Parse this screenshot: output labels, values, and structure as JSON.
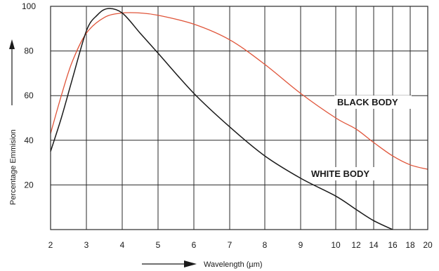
{
  "chart_data": {
    "type": "line",
    "xlabel": "Wavelength (µm)",
    "ylabel": "Percentage Emmision",
    "x_ticks": [
      2,
      3,
      4,
      5,
      6,
      7,
      8,
      9,
      10,
      12,
      14,
      16,
      18,
      20
    ],
    "y_ticks": [
      20,
      40,
      60,
      80,
      100
    ],
    "ylim": [
      0,
      100
    ],
    "xlim": [
      2,
      20
    ],
    "grid": true,
    "series": [
      {
        "name": "BLACK BODY",
        "color": "#e0553a",
        "x": [
          2,
          2.3,
          2.6,
          3,
          3.5,
          4,
          4.5,
          5,
          6,
          7,
          8,
          9,
          10,
          12,
          14,
          16,
          18,
          20
        ],
        "y": [
          43,
          60,
          75,
          88,
          95,
          97,
          97,
          96,
          92,
          85,
          74,
          61,
          50,
          45,
          39,
          33,
          29,
          27
        ]
      },
      {
        "name": "WHITE BODY",
        "color": "#1a1a1a",
        "x": [
          2,
          2.3,
          2.6,
          3,
          3.3,
          3.6,
          4,
          4.5,
          5,
          6,
          7,
          8,
          9,
          10,
          12,
          14,
          16
        ],
        "y": [
          35,
          50,
          67,
          89,
          96,
          99,
          97,
          88,
          79,
          61,
          46,
          33,
          23,
          15,
          9,
          4,
          0
        ]
      }
    ]
  }
}
